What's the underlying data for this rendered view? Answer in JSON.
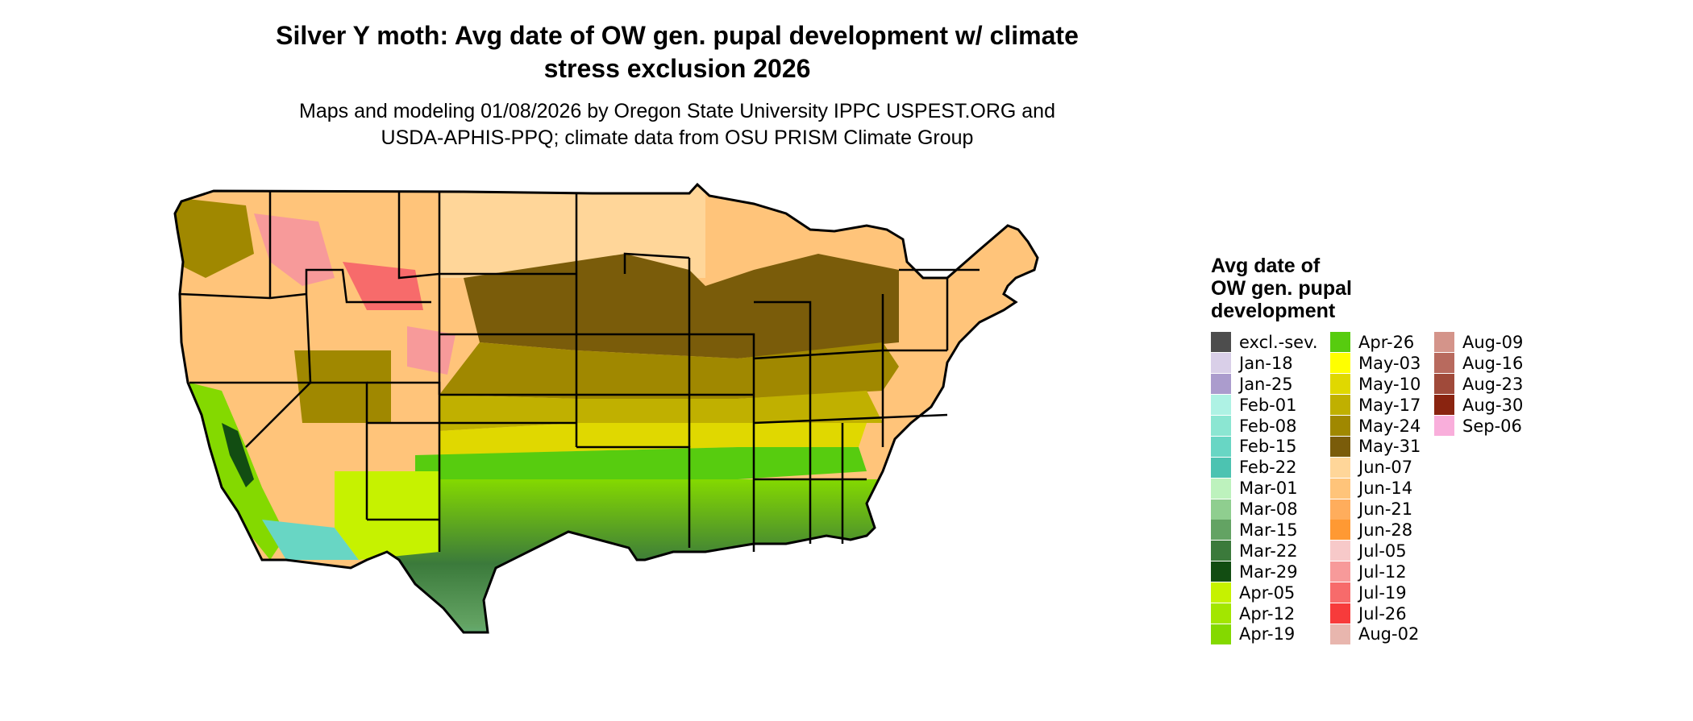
{
  "title": "Silver Y moth: Avg date of OW gen. pupal development w/ climate\nstress exclusion 2026",
  "subtitle": "Maps and modeling 01/08/2026 by Oregon State University IPPC USPEST.ORG and\nUSDA-APHIS-PPQ; climate data from OSU PRISM Climate Group",
  "legend": {
    "title": "Avg date of\nOW gen. pupal\ndevelopment",
    "columns": [
      [
        {
          "label": "excl.-sev.",
          "color": "#4d4d4d"
        },
        {
          "label": "Jan-18",
          "color": "#d9cfe8"
        },
        {
          "label": "Jan-25",
          "color": "#ab9ccd"
        },
        {
          "label": "Feb-01",
          "color": "#aef2e4"
        },
        {
          "label": "Feb-08",
          "color": "#8be6d2"
        },
        {
          "label": "Feb-15",
          "color": "#68d6c4"
        },
        {
          "label": "Feb-22",
          "color": "#4cc3b1"
        },
        {
          "label": "Mar-01",
          "color": "#bdf2bd"
        },
        {
          "label": "Mar-08",
          "color": "#8fce8f"
        },
        {
          "label": "Mar-15",
          "color": "#63a363"
        },
        {
          "label": "Mar-22",
          "color": "#3b7a3b"
        },
        {
          "label": "Mar-29",
          "color": "#124d12"
        },
        {
          "label": "Apr-05",
          "color": "#c6f200"
        },
        {
          "label": "Apr-12",
          "color": "#a3e600"
        },
        {
          "label": "Apr-19",
          "color": "#84d900"
        }
      ],
      [
        {
          "label": "Apr-26",
          "color": "#57cc0f"
        },
        {
          "label": "May-03",
          "color": "#ffff00"
        },
        {
          "label": "May-10",
          "color": "#e0d800"
        },
        {
          "label": "May-17",
          "color": "#c0b000"
        },
        {
          "label": "May-24",
          "color": "#a08800"
        },
        {
          "label": "May-31",
          "color": "#7a5c0a"
        },
        {
          "label": "Jun-07",
          "color": "#ffd699"
        },
        {
          "label": "Jun-14",
          "color": "#ffc47a"
        },
        {
          "label": "Jun-21",
          "color": "#ffad5c"
        },
        {
          "label": "Jun-28",
          "color": "#ff9933"
        },
        {
          "label": "Jul-05",
          "color": "#f7c9c9"
        },
        {
          "label": "Jul-12",
          "color": "#f79a9a"
        },
        {
          "label": "Jul-19",
          "color": "#f76b6b"
        },
        {
          "label": "Jul-26",
          "color": "#f73b3b"
        },
        {
          "label": "Aug-02",
          "color": "#e8b6ae"
        }
      ],
      [
        {
          "label": "Aug-09",
          "color": "#d4948a"
        },
        {
          "label": "Aug-16",
          "color": "#b86a5e"
        },
        {
          "label": "Aug-23",
          "color": "#a04a3a"
        },
        {
          "label": "Aug-30",
          "color": "#8a2410"
        },
        {
          "label": "Sep-06",
          "color": "#f9aedb"
        }
      ]
    ]
  }
}
